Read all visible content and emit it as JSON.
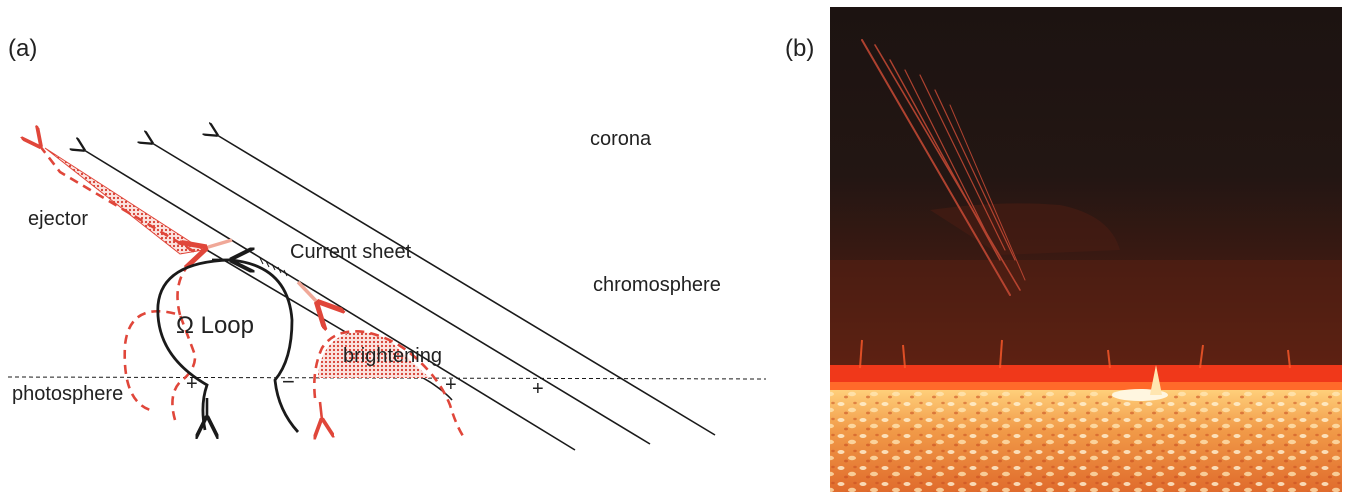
{
  "panel_a": {
    "label": "(a)",
    "labels": {
      "corona": "corona",
      "chromosphere": "chromosphere",
      "photosphere": "photosphere",
      "ejector": "ejector",
      "current_sheet": "Current sheet",
      "loop": "Ω  Loop",
      "brightening": "brightening"
    },
    "polarities": {
      "left_footpoint": "+",
      "right_footpoint": "−",
      "field_plus_1": "+",
      "field_plus_2": "+"
    }
  },
  "panel_b": {
    "label": "(b)"
  },
  "colors": {
    "field_line": "#1a1a1a",
    "ejector_red": "#e0463a",
    "outflow_pink": "#f0a898",
    "sun_limb": "#f0381a"
  }
}
